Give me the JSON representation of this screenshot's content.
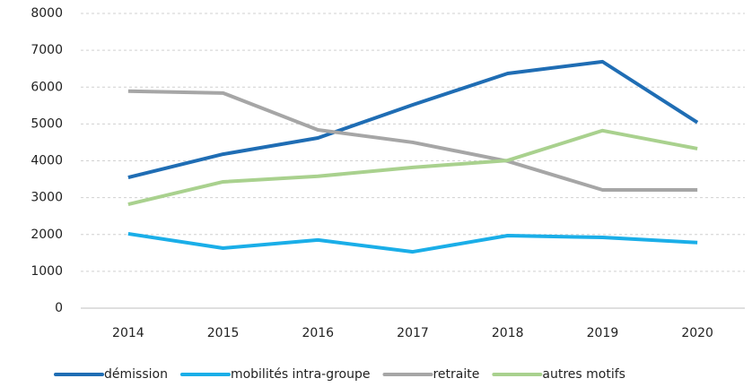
{
  "chart_data": {
    "type": "line",
    "categories": [
      "2014",
      "2015",
      "2016",
      "2017",
      "2018",
      "2019",
      "2020"
    ],
    "series": [
      {
        "name": "démission",
        "color": "#1f6db4",
        "values": [
          3550,
          4180,
          4620,
          5520,
          6370,
          6690,
          5040
        ]
      },
      {
        "name": "mobilités intra-groupe",
        "color": "#1aaee8",
        "values": [
          2020,
          1630,
          1850,
          1530,
          1970,
          1920,
          1780
        ]
      },
      {
        "name": "retraite",
        "color": "#a6a6a6",
        "values": [
          5890,
          5840,
          4840,
          4500,
          3990,
          3210,
          3210
        ]
      },
      {
        "name": "autres motifs",
        "color": "#a9d18e",
        "values": [
          2820,
          3430,
          3580,
          3820,
          4010,
          4820,
          4330
        ]
      }
    ],
    "ylim": [
      0,
      8000
    ],
    "yticks": [
      0,
      1000,
      2000,
      3000,
      4000,
      5000,
      6000,
      7000,
      8000
    ],
    "grid": true,
    "legend": "bottom"
  }
}
